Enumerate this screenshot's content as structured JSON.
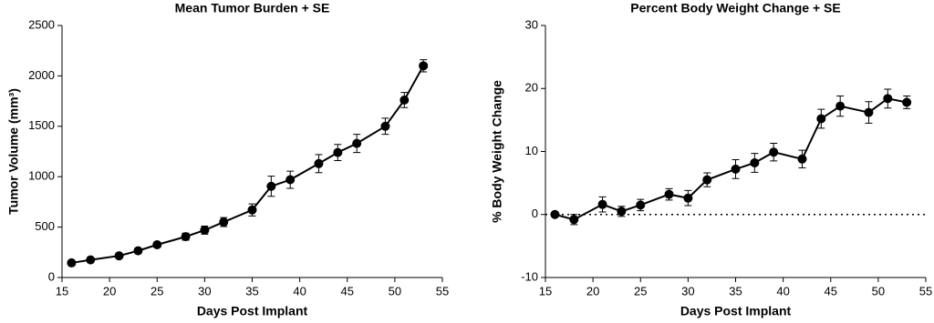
{
  "chart_data": [
    {
      "type": "line",
      "title": "Mean Tumor Burden + SE",
      "x_label": "Days Post Implant",
      "y_label": "Tumor Volume (mm³)",
      "x": [
        16,
        18,
        21,
        23,
        25,
        28,
        30,
        32,
        35,
        37,
        39,
        42,
        44,
        46,
        49,
        51,
        53
      ],
      "values": [
        145,
        175,
        215,
        265,
        325,
        405,
        470,
        550,
        670,
        905,
        970,
        1130,
        1240,
        1330,
        1500,
        1760,
        2100
      ],
      "errors": [
        20,
        15,
        20,
        25,
        25,
        35,
        40,
        45,
        60,
        100,
        85,
        90,
        80,
        90,
        80,
        75,
        60
      ],
      "color": "#000000",
      "xlim": [
        15,
        55
      ],
      "xticks": [
        15,
        20,
        25,
        30,
        35,
        40,
        45,
        50,
        55
      ],
      "ylim": [
        0,
        2500
      ],
      "yticks": [
        0,
        500,
        1000,
        1500,
        2000,
        2500
      ]
    },
    {
      "type": "line",
      "title": "Percent Body Weight Change + SE",
      "x_label": "Days Post Implant",
      "y_label": "% Body  Weight Change",
      "x": [
        16,
        18,
        21,
        23,
        25,
        28,
        30,
        32,
        35,
        37,
        39,
        42,
        44,
        46,
        49,
        51,
        53
      ],
      "values": [
        0,
        -0.8,
        1.6,
        0.5,
        1.5,
        3.2,
        2.6,
        5.5,
        7.2,
        8.2,
        9.9,
        8.8,
        15.2,
        17.2,
        16.2,
        18.4,
        17.8
      ],
      "errors": [
        0.3,
        0.8,
        1.2,
        0.8,
        0.9,
        0.9,
        1.2,
        1.1,
        1.5,
        1.5,
        1.4,
        1.4,
        1.5,
        1.6,
        1.7,
        1.5,
        1.0
      ],
      "color": "#000000",
      "reference_line": 0,
      "xlim": [
        15,
        55
      ],
      "xticks": [
        15,
        20,
        25,
        30,
        35,
        40,
        45,
        50,
        55
      ],
      "ylim": [
        -10,
        30
      ],
      "yticks": [
        -10,
        0,
        10,
        20,
        30
      ]
    }
  ]
}
